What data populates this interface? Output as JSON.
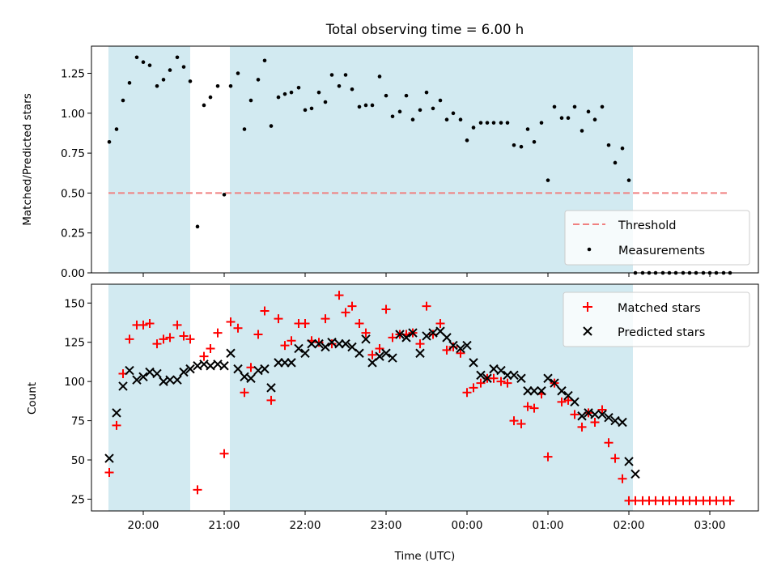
{
  "title": "Total observing time = 6.00 h",
  "chart_data": [
    {
      "type": "scatter",
      "panel": "top",
      "ylabel": "Matched/Predicted stars",
      "ylim": [
        0,
        1.42
      ],
      "yticks": [
        0.0,
        0.25,
        0.5,
        0.75,
        1.0,
        1.25
      ],
      "ytick_labels": [
        "0.00",
        "0.25",
        "0.50",
        "0.75",
        "1.00",
        "1.25"
      ],
      "xlim": [
        19.36,
        27.6
      ],
      "shaded_intervals": [
        [
          19.57,
          20.58
        ],
        [
          21.07,
          26.05
        ]
      ],
      "shade_color": "#add8e6",
      "threshold": {
        "name": "Threshold",
        "value": 0.5,
        "x_range": [
          19.57,
          27.25
        ],
        "color": "#f08080",
        "style": "dashed"
      },
      "legend": {
        "position": "lower-right",
        "entries": [
          "Threshold",
          "Measurements"
        ]
      },
      "series": [
        {
          "name": "Measurements",
          "color": "#000000",
          "marker": "dot",
          "x": [
            19.58,
            19.67,
            19.75,
            19.83,
            19.92,
            20.0,
            20.08,
            20.17,
            20.25,
            20.33,
            20.42,
            20.5,
            20.58,
            20.67,
            20.75,
            20.83,
            20.92,
            21.0,
            21.08,
            21.17,
            21.25,
            21.33,
            21.42,
            21.5,
            21.58,
            21.67,
            21.75,
            21.83,
            21.92,
            22.0,
            22.08,
            22.17,
            22.25,
            22.33,
            22.42,
            22.5,
            22.58,
            22.67,
            22.75,
            22.83,
            22.92,
            23.0,
            23.08,
            23.17,
            23.25,
            23.33,
            23.42,
            23.5,
            23.58,
            23.67,
            23.75,
            23.83,
            23.92,
            24.0,
            24.08,
            24.17,
            24.25,
            24.33,
            24.42,
            24.5,
            24.58,
            24.67,
            24.75,
            24.83,
            24.92,
            25.0,
            25.08,
            25.17,
            25.25,
            25.33,
            25.42,
            25.5,
            25.58,
            25.67,
            25.75,
            25.83,
            25.92,
            26.0,
            26.08,
            26.17,
            26.25,
            26.33,
            26.42,
            26.5,
            26.58,
            26.67,
            26.75,
            26.83,
            26.92,
            27.0,
            27.08,
            27.17,
            27.25
          ],
          "y": [
            0.82,
            0.9,
            1.08,
            1.19,
            1.35,
            1.32,
            1.3,
            1.17,
            1.21,
            1.27,
            1.35,
            1.29,
            1.2,
            0.29,
            1.05,
            1.1,
            1.17,
            0.49,
            1.17,
            1.25,
            0.9,
            1.08,
            1.21,
            1.33,
            0.92,
            1.1,
            1.12,
            1.13,
            1.16,
            1.02,
            1.03,
            1.13,
            1.07,
            1.24,
            1.17,
            1.24,
            1.15,
            1.04,
            1.05,
            1.05,
            1.23,
            1.11,
            0.98,
            1.01,
            1.11,
            0.96,
            1.02,
            1.13,
            1.03,
            1.08,
            0.96,
            1.0,
            0.96,
            0.83,
            0.91,
            0.94,
            0.94,
            0.94,
            0.94,
            0.94,
            0.8,
            0.79,
            0.9,
            0.82,
            0.94,
            0.58,
            1.04,
            0.97,
            0.97,
            1.04,
            0.89,
            1.01,
            0.96,
            1.04,
            0.8,
            0.69,
            0.78,
            0.58,
            0,
            0,
            0,
            0,
            0,
            0,
            0,
            0,
            0,
            0,
            0,
            0,
            0,
            0,
            0
          ]
        }
      ]
    },
    {
      "type": "scatter",
      "panel": "bottom",
      "xlabel": "Time (UTC)",
      "ylabel": "Count",
      "ylim": [
        17.5,
        162
      ],
      "yticks": [
        25,
        50,
        75,
        100,
        125,
        150
      ],
      "ytick_labels": [
        "25",
        "50",
        "75",
        "100",
        "125",
        "150"
      ],
      "xlim": [
        19.36,
        27.6
      ],
      "xticks": [
        20,
        21,
        22,
        23,
        24,
        25,
        26,
        27
      ],
      "xtick_labels": [
        "20:00",
        "21:00",
        "22:00",
        "23:00",
        "00:00",
        "01:00",
        "02:00",
        "03:00"
      ],
      "shaded_intervals": [
        [
          19.57,
          20.58
        ],
        [
          21.07,
          26.05
        ]
      ],
      "shade_color": "#add8e6",
      "legend": {
        "position": "top-right",
        "entries": [
          "Matched stars",
          "Predicted stars"
        ]
      },
      "series": [
        {
          "name": "Matched stars",
          "color": "#ff0000",
          "marker": "plus",
          "x": [
            19.58,
            19.67,
            19.75,
            19.83,
            19.92,
            20.0,
            20.08,
            20.17,
            20.25,
            20.33,
            20.42,
            20.5,
            20.58,
            20.67,
            20.75,
            20.83,
            20.92,
            21.0,
            21.08,
            21.17,
            21.25,
            21.33,
            21.42,
            21.5,
            21.58,
            21.67,
            21.75,
            21.83,
            21.92,
            22.0,
            22.08,
            22.17,
            22.25,
            22.33,
            22.42,
            22.5,
            22.58,
            22.67,
            22.75,
            22.83,
            22.92,
            23.0,
            23.08,
            23.17,
            23.25,
            23.33,
            23.42,
            23.5,
            23.58,
            23.67,
            23.75,
            23.83,
            23.92,
            24.0,
            24.08,
            24.17,
            24.25,
            24.33,
            24.42,
            24.5,
            24.58,
            24.67,
            24.75,
            24.83,
            24.92,
            25.0,
            25.08,
            25.17,
            25.25,
            25.33,
            25.42,
            25.5,
            25.58,
            25.67,
            25.75,
            25.83,
            25.92,
            26.0,
            26.08,
            26.17,
            26.25,
            26.33,
            26.42,
            26.5,
            26.58,
            26.67,
            26.75,
            26.83,
            26.92,
            27.0,
            27.08,
            27.17,
            27.25
          ],
          "y": [
            42,
            72,
            105,
            127,
            136,
            136,
            137,
            124,
            127,
            128,
            136,
            129,
            127,
            31,
            116,
            121,
            131,
            54,
            138,
            134,
            93,
            109,
            130,
            145,
            88,
            140,
            123,
            126,
            137,
            137,
            126,
            125,
            140,
            124,
            155,
            144,
            148,
            137,
            131,
            117,
            121,
            146,
            128,
            130,
            130,
            131,
            124,
            148,
            130,
            137,
            120,
            122,
            118,
            93,
            96,
            99,
            102,
            102,
            100,
            99,
            75,
            73,
            84,
            83,
            92,
            52,
            99,
            87,
            88,
            79,
            71,
            80,
            74,
            82,
            61,
            51,
            38,
            24,
            24,
            24,
            24,
            24,
            24,
            24,
            24,
            24,
            24,
            24,
            24,
            24,
            24,
            24,
            24
          ]
        },
        {
          "name": "Predicted stars",
          "color": "#000000",
          "marker": "x",
          "x": [
            19.58,
            19.67,
            19.75,
            19.83,
            19.92,
            20.0,
            20.08,
            20.17,
            20.25,
            20.33,
            20.42,
            20.5,
            20.58,
            20.67,
            20.75,
            20.83,
            20.92,
            21.0,
            21.08,
            21.17,
            21.25,
            21.33,
            21.42,
            21.5,
            21.58,
            21.67,
            21.75,
            21.83,
            21.92,
            22.0,
            22.08,
            22.17,
            22.25,
            22.33,
            22.42,
            22.5,
            22.58,
            22.67,
            22.75,
            22.83,
            22.92,
            23.0,
            23.08,
            23.17,
            23.25,
            23.33,
            23.42,
            23.5,
            23.58,
            23.67,
            23.75,
            23.83,
            23.92,
            24.0,
            24.08,
            24.17,
            24.25,
            24.33,
            24.42,
            24.5,
            24.58,
            24.67,
            24.75,
            24.83,
            24.92,
            25.0,
            25.08,
            25.17,
            25.25,
            25.33,
            25.42,
            25.5,
            25.58,
            25.67,
            25.75,
            25.83,
            25.92,
            26.0,
            26.08
          ],
          "y": [
            51,
            80,
            97,
            107,
            101,
            103,
            106,
            105,
            100,
            101,
            101,
            106,
            108,
            110,
            111,
            110,
            111,
            110,
            118,
            108,
            103,
            102,
            107,
            108,
            96,
            112,
            112,
            112,
            121,
            118,
            124,
            124,
            122,
            125,
            124,
            124,
            122,
            118,
            127,
            112,
            116,
            118,
            115,
            130,
            128,
            131,
            118,
            129,
            131,
            132,
            128,
            123,
            121,
            123,
            112,
            104,
            102,
            108,
            107,
            104,
            104,
            102,
            94,
            94,
            94,
            102,
            99,
            94,
            91,
            87,
            78,
            80,
            79,
            79,
            77,
            75,
            74,
            49,
            41
          ]
        }
      ]
    }
  ]
}
